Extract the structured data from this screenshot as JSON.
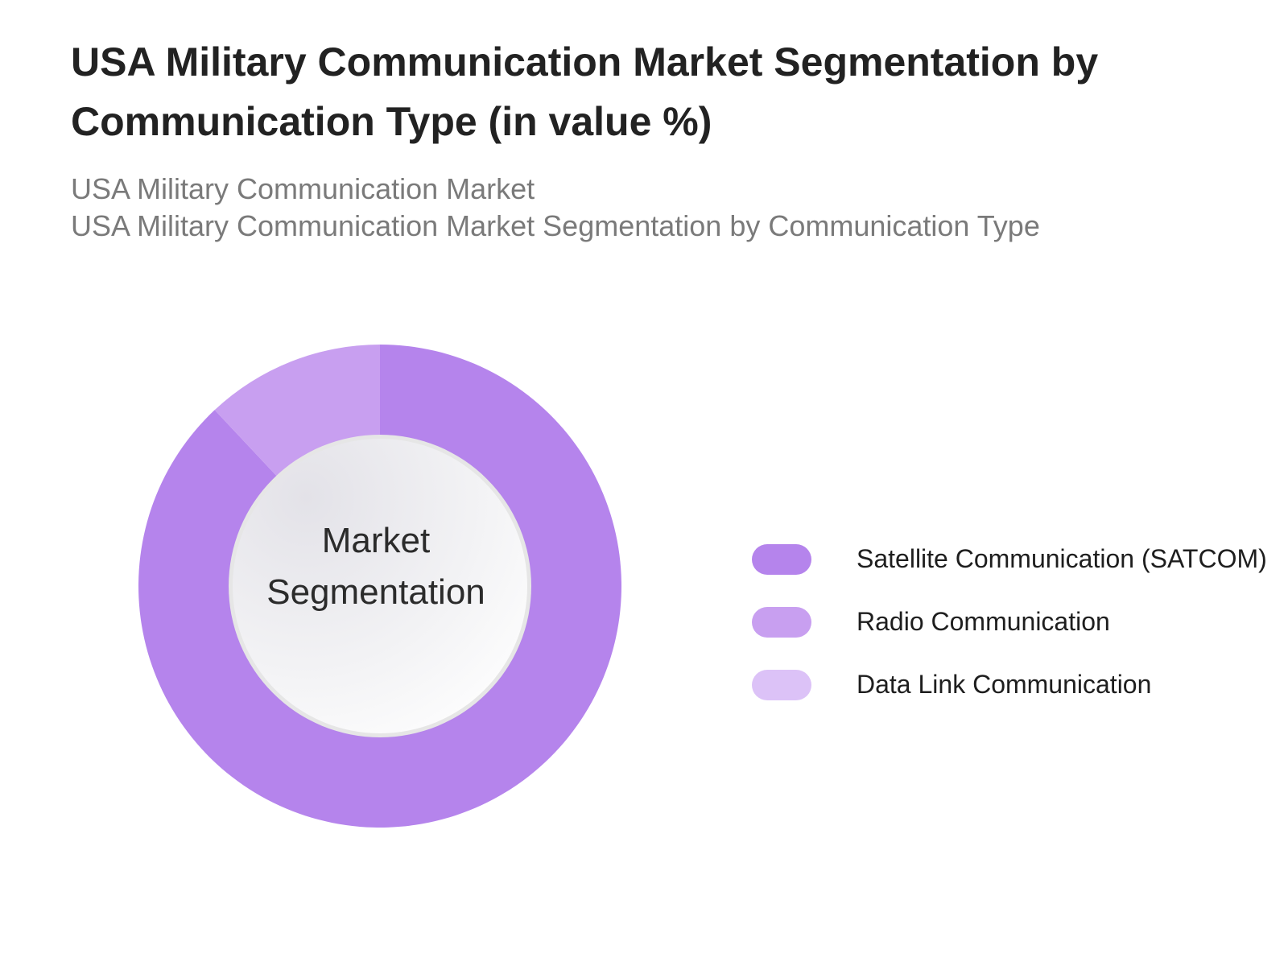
{
  "title": "USA Military Communication Market Segmentation by Communication Type (in value %)",
  "subtitles": [
    "USA Military Communication Market",
    "USA Military Communication Market Segmentation by Communication Type"
  ],
  "center_label_lines": [
    "Market",
    "Segmentation"
  ],
  "chart_data": {
    "type": "pie",
    "donut": true,
    "categories": [
      "Satellite Communication (SATCOM)",
      "Radio Communication",
      "Data Link Communication"
    ],
    "values": [
      88,
      12,
      0
    ],
    "unit": "%",
    "colors": [
      "#b584ec",
      "#c89ff0",
      "#dcc2f7"
    ],
    "legend_position": "right"
  }
}
